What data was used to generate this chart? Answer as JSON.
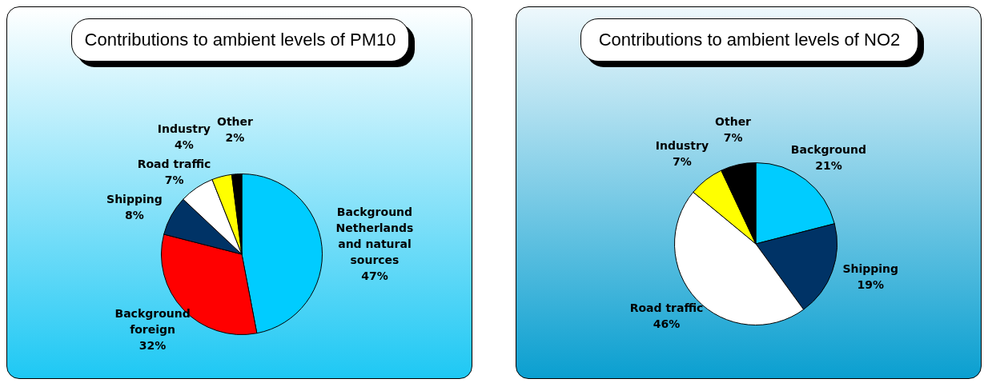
{
  "chart_data": [
    {
      "type": "pie",
      "title": "Contributions to ambient levels of PM10",
      "categories": [
        "Background Netherlands and natural sources",
        "Background foreign",
        "Shipping",
        "Road traffic",
        "Industry",
        "Other"
      ],
      "values": [
        47,
        32,
        8,
        7,
        4,
        2
      ],
      "colors": [
        "#00ccff",
        "#ff0000",
        "#003366",
        "#ffffff",
        "#ffff00",
        "#000000"
      ],
      "value_labels": [
        "47%",
        "32%",
        "8%",
        "7%",
        "4%",
        "2%"
      ]
    },
    {
      "type": "pie",
      "title": "Contributions to ambient levels of NO2",
      "categories": [
        "Background",
        "Shipping",
        "Road traffic",
        "Industry",
        "Other"
      ],
      "values": [
        21,
        19,
        46,
        7,
        7
      ],
      "colors": [
        "#00ccff",
        "#003366",
        "#ffffff",
        "#ffff00",
        "#000000"
      ],
      "value_labels": [
        "21%",
        "19%",
        "46%",
        "7%",
        "7%"
      ]
    }
  ]
}
